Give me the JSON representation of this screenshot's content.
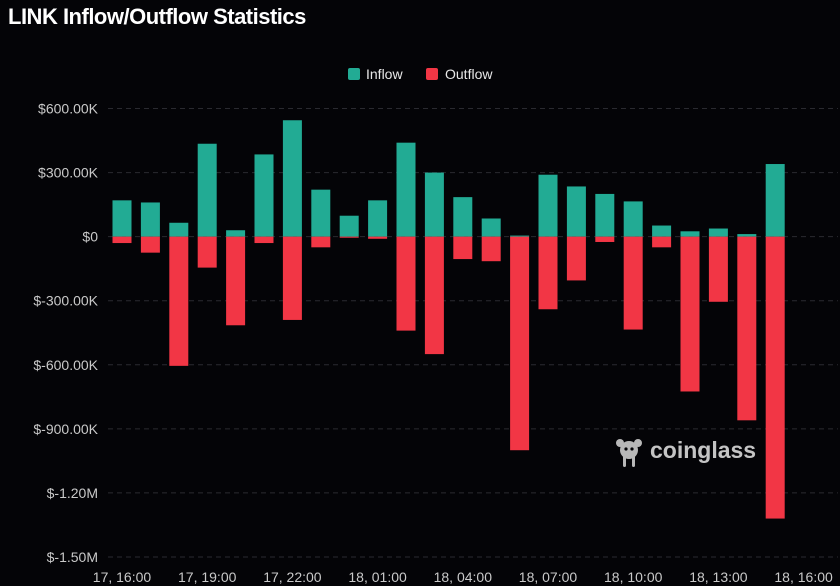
{
  "title": "LINK Inflow/Outflow Statistics",
  "watermark": "coinglass",
  "colors": {
    "background": "#040407",
    "inflow": "#22ab94",
    "outflow": "#f23645",
    "grid": "#2a2a30"
  },
  "chart_data": {
    "type": "bar",
    "legend_position": "top-center",
    "grid": true,
    "ylim": [
      -1500000,
      600000
    ],
    "y_ticks": [
      {
        "value": 600000,
        "label": "$600.00K"
      },
      {
        "value": 300000,
        "label": "$300.00K"
      },
      {
        "value": 0,
        "label": "$0"
      },
      {
        "value": -300000,
        "label": "$-300.00K"
      },
      {
        "value": -600000,
        "label": "$-600.00K"
      },
      {
        "value": -900000,
        "label": "$-900.00K"
      },
      {
        "value": -1200000,
        "label": "$-1.20M"
      },
      {
        "value": -1500000,
        "label": "$-1.50M"
      }
    ],
    "x_ticks": [
      {
        "index": 0,
        "label": "17, 16:00"
      },
      {
        "index": 3,
        "label": "17, 19:00"
      },
      {
        "index": 6,
        "label": "17, 22:00"
      },
      {
        "index": 9,
        "label": "18, 01:00"
      },
      {
        "index": 12,
        "label": "18, 04:00"
      },
      {
        "index": 15,
        "label": "18, 07:00"
      },
      {
        "index": 18,
        "label": "18, 10:00"
      },
      {
        "index": 21,
        "label": "18, 13:00"
      },
      {
        "index": 24,
        "label": "18, 16:00"
      }
    ],
    "categories": [
      "17, 16:00",
      "17, 17:00",
      "17, 18:00",
      "17, 19:00",
      "17, 20:00",
      "17, 21:00",
      "17, 22:00",
      "17, 23:00",
      "18, 00:00",
      "18, 01:00",
      "18, 02:00",
      "18, 03:00",
      "18, 04:00",
      "18, 05:00",
      "18, 06:00",
      "18, 07:00",
      "18, 08:00",
      "18, 09:00",
      "18, 10:00",
      "18, 11:00",
      "18, 12:00",
      "18, 13:00",
      "18, 14:00",
      "18, 15:00",
      "18, 16:00"
    ],
    "series": [
      {
        "name": "Inflow",
        "values": [
          170000,
          160000,
          65000,
          435000,
          30000,
          385000,
          545000,
          220000,
          98000,
          170000,
          440000,
          300000,
          185000,
          85000,
          5000,
          290000,
          235000,
          200000,
          165000,
          52000,
          25000,
          38000,
          12000,
          340000,
          0
        ]
      },
      {
        "name": "Outflow",
        "values": [
          -30000,
          -75000,
          -605000,
          -145000,
          -415000,
          -30000,
          -390000,
          -50000,
          -5000,
          -10000,
          -440000,
          -550000,
          -105000,
          -115000,
          -1000000,
          -340000,
          -205000,
          -25000,
          -435000,
          -50000,
          -725000,
          -305000,
          -860000,
          -1320000,
          0
        ]
      }
    ]
  }
}
